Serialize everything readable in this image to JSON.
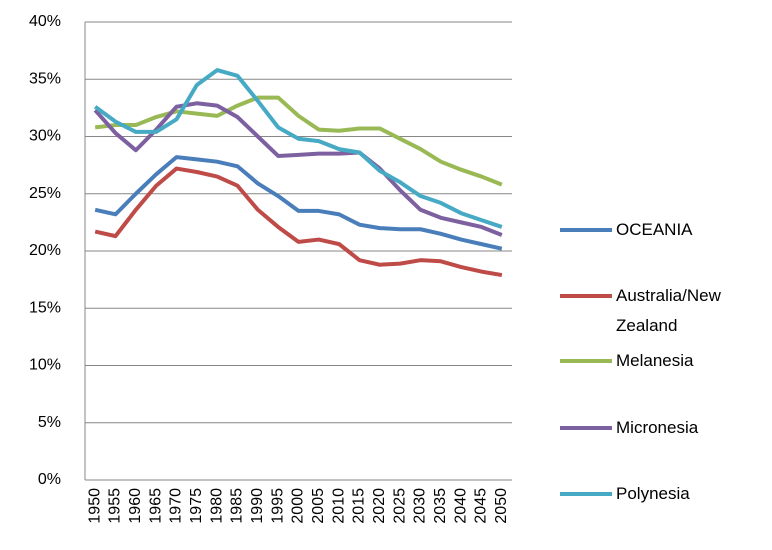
{
  "chart_data": {
    "type": "line",
    "categories": [
      "1950",
      "1955",
      "1960",
      "1965",
      "1970",
      "1975",
      "1980",
      "1985",
      "1990",
      "1995",
      "2000",
      "2005",
      "2010",
      "2015",
      "2020",
      "2025",
      "2030",
      "2035",
      "2040",
      "2045",
      "2050"
    ],
    "series": [
      {
        "name": "OCEANIA",
        "color": "#4a7ebb",
        "values": [
          23.6,
          23.2,
          25.0,
          26.7,
          28.2,
          28.0,
          27.8,
          27.4,
          25.9,
          24.8,
          23.5,
          23.5,
          23.2,
          22.3,
          22.0,
          21.9,
          21.9,
          21.5,
          21.0,
          20.6,
          20.2
        ]
      },
      {
        "name": "Australia/New Zealand",
        "color": "#be4b48",
        "values": [
          21.7,
          21.3,
          23.6,
          25.7,
          27.2,
          26.9,
          26.5,
          25.7,
          23.6,
          22.1,
          20.8,
          21.0,
          20.6,
          19.2,
          18.8,
          18.9,
          19.2,
          19.1,
          18.6,
          18.2,
          17.9
        ]
      },
      {
        "name": "Melanesia",
        "color": "#98b954",
        "values": [
          30.8,
          31.0,
          31.0,
          31.7,
          32.2,
          32.0,
          31.8,
          32.7,
          33.4,
          33.4,
          31.8,
          30.6,
          30.5,
          30.7,
          30.7,
          29.8,
          28.9,
          27.8,
          27.1,
          26.5,
          25.8
        ]
      },
      {
        "name": "Micronesia",
        "color": "#7d60a0",
        "values": [
          32.3,
          30.3,
          28.8,
          30.6,
          32.6,
          32.9,
          32.7,
          31.7,
          30.0,
          28.3,
          28.4,
          28.5,
          28.5,
          28.6,
          27.2,
          25.3,
          23.6,
          22.9,
          22.5,
          22.1,
          21.4
        ]
      },
      {
        "name": "Polynesia",
        "color": "#46aac5",
        "values": [
          32.6,
          31.3,
          30.4,
          30.4,
          31.5,
          34.5,
          35.8,
          35.3,
          33.1,
          30.8,
          29.8,
          29.6,
          28.9,
          28.6,
          27.0,
          26.0,
          24.8,
          24.2,
          23.3,
          22.7,
          22.1
        ]
      }
    ],
    "ylim": [
      0,
      40
    ],
    "yticks": [
      {
        "value": 0,
        "label": "0%"
      },
      {
        "value": 5,
        "label": "5%"
      },
      {
        "value": 10,
        "label": "10%"
      },
      {
        "value": 15,
        "label": "15%"
      },
      {
        "value": 20,
        "label": "20%"
      },
      {
        "value": 25,
        "label": "25%"
      },
      {
        "value": 30,
        "label": "30%"
      },
      {
        "value": 35,
        "label": "35%"
      },
      {
        "value": 40,
        "label": "40%"
      }
    ],
    "grid": true,
    "legend": "right"
  }
}
